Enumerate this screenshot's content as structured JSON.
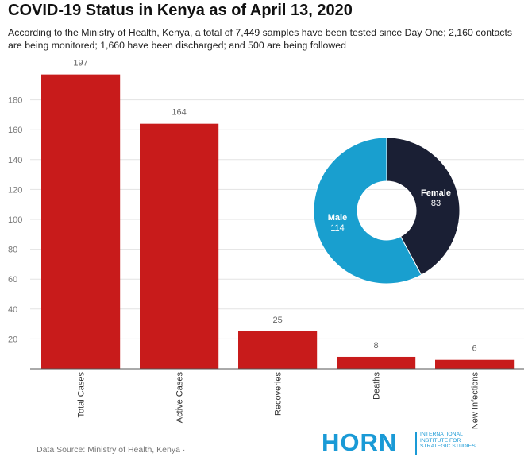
{
  "header": {
    "title": "COVID-19 Status in Kenya as of April 13, 2020",
    "subtitle": "According to the Ministry of Health, Kenya, a total of 7,449 samples have been tested since Day One;  2,160 contacts are being monitored; 1,660 have been discharged; and 500 are being followed"
  },
  "footer": {
    "source": "Data Source: Ministry of Health, Kenya ·"
  },
  "logo": {
    "word": "HORN",
    "subtitle": "INTERNATIONAL INSTITUTE FOR STRATEGIC STUDIES"
  },
  "colors": {
    "bar": "#c81b1b",
    "male": "#199fcf",
    "female": "#1a1f34",
    "grid": "#e3e3e3"
  },
  "chart_data": [
    {
      "type": "bar",
      "categories": [
        "Total Cases",
        "Active Cases",
        "Recoveries",
        "Deaths",
        "New Infections"
      ],
      "values": [
        197,
        164,
        25,
        8,
        6
      ],
      "ylim": [
        0,
        200
      ],
      "yticks": [
        20,
        40,
        60,
        80,
        100,
        120,
        140,
        160,
        180
      ],
      "grid": true
    },
    {
      "type": "pie",
      "donut": true,
      "labels": [
        "Female",
        "Male"
      ],
      "values": [
        83,
        114
      ]
    }
  ]
}
